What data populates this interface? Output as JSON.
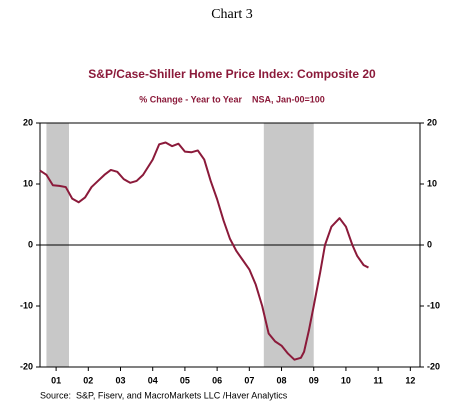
{
  "chart_data": {
    "type": "line",
    "header": "Chart 3",
    "title": "S&P/Case-Shiller Home Price Index: Composite 20",
    "subtitle": "% Change - Year to Year    NSA, Jan-00=100",
    "source": "Source:  S&P, Fiserv, and MacroMarkets LLC /Haver Analytics",
    "x": [
      2001.0,
      2001.2,
      2001.4,
      2001.6,
      2001.8,
      2002.0,
      2002.2,
      2002.4,
      2002.6,
      2002.8,
      2003.0,
      2003.2,
      2003.4,
      2003.6,
      2003.8,
      2004.0,
      2004.2,
      2004.5,
      2004.7,
      2004.9,
      2005.1,
      2005.3,
      2005.5,
      2005.7,
      2005.9,
      2006.1,
      2006.3,
      2006.5,
      2006.7,
      2006.9,
      2007.1,
      2007.3,
      2007.5,
      2007.7,
      2007.9,
      2008.1,
      2008.3,
      2008.5,
      2008.7,
      2008.9,
      2009.1,
      2009.2,
      2009.35,
      2009.5,
      2009.7,
      2009.85,
      2010.05,
      2010.3,
      2010.5,
      2010.7,
      2010.85,
      2011.05,
      2011.2
    ],
    "series": [
      {
        "name": "Composite 20",
        "color": "#8b1a3a",
        "values": [
          12.2,
          11.5,
          9.8,
          9.7,
          9.5,
          7.6,
          7.0,
          7.8,
          9.5,
          10.5,
          11.5,
          12.3,
          12.0,
          10.8,
          10.2,
          10.5,
          11.5,
          14.0,
          16.5,
          16.8,
          16.2,
          16.6,
          15.3,
          15.2,
          15.5,
          14.0,
          10.5,
          7.5,
          4.0,
          1.0,
          -1.0,
          -2.5,
          -4.0,
          -6.5,
          -10.0,
          -14.5,
          -15.8,
          -16.5,
          -17.8,
          -18.8,
          -18.5,
          -17.5,
          -14.0,
          -10.0,
          -4.5,
          0.0,
          3.0,
          4.4,
          3.0,
          0.0,
          -1.8,
          -3.3,
          -3.7
        ]
      }
    ],
    "shaded_periods": [
      [
        2001.2,
        2001.9
      ],
      [
        2007.95,
        2009.5
      ]
    ],
    "shade_color": "#c8c8c8",
    "xlim": [
      2001.0,
      2012.8
    ],
    "xticks": [
      {
        "value": 2001.5,
        "label": "01"
      },
      {
        "value": 2002.5,
        "label": "02"
      },
      {
        "value": 2003.5,
        "label": "03"
      },
      {
        "value": 2004.5,
        "label": "04"
      },
      {
        "value": 2005.5,
        "label": "05"
      },
      {
        "value": 2006.5,
        "label": "06"
      },
      {
        "value": 2007.5,
        "label": "07"
      },
      {
        "value": 2008.5,
        "label": "08"
      },
      {
        "value": 2009.5,
        "label": "09"
      },
      {
        "value": 2010.5,
        "label": "10"
      },
      {
        "value": 2011.5,
        "label": "11"
      },
      {
        "value": 2012.5,
        "label": "12"
      }
    ],
    "ylim": [
      -20,
      20
    ],
    "yticks": [
      -20,
      -10,
      0,
      10,
      20
    ],
    "y2lim": [
      -20,
      20
    ],
    "y2ticks": [
      -20,
      -10,
      0,
      10,
      20
    ]
  }
}
